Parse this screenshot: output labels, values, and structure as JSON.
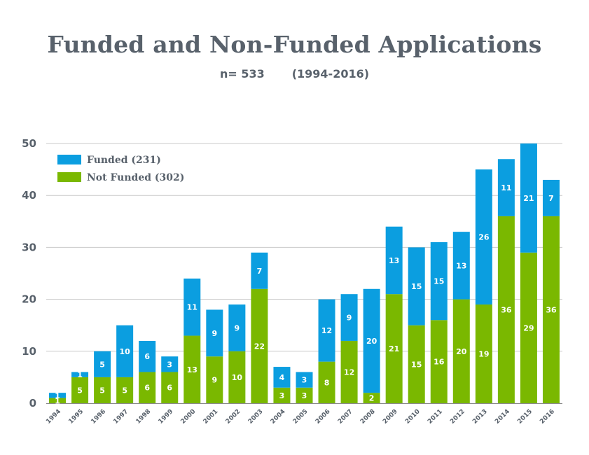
{
  "title": "Funded and Non-Funded Applications",
  "subtitle": "n= 533       (1994-2016)",
  "colors": {
    "funded": "#0b9ee0",
    "not_funded": "#7ab800"
  },
  "chart_data": {
    "type": "bar",
    "stacked": true,
    "categories": [
      "1994",
      "1995",
      "1996",
      "1997",
      "1998",
      "1999",
      "2000",
      "2001",
      "2002",
      "2003",
      "2004",
      "2005",
      "2006",
      "2007",
      "2008",
      "2009",
      "2010",
      "2011",
      "2012",
      "2013",
      "2014",
      "2015",
      "2016"
    ],
    "series": [
      {
        "name": "Not Funded (302)",
        "key": "not_funded",
        "values": [
          1,
          5,
          5,
          5,
          6,
          6,
          13,
          9,
          10,
          22,
          3,
          3,
          8,
          12,
          2,
          21,
          15,
          16,
          20,
          19,
          36,
          29,
          36
        ]
      },
      {
        "name": "Funded (231)",
        "key": "funded",
        "values": [
          1,
          1,
          5,
          10,
          6,
          3,
          11,
          9,
          9,
          7,
          4,
          3,
          12,
          9,
          20,
          13,
          15,
          15,
          13,
          26,
          11,
          21,
          7
        ]
      }
    ],
    "ylim": [
      0,
      50
    ],
    "yticks": [
      0,
      10,
      20,
      30,
      40,
      50
    ],
    "grid": true,
    "legend": "top-left"
  }
}
